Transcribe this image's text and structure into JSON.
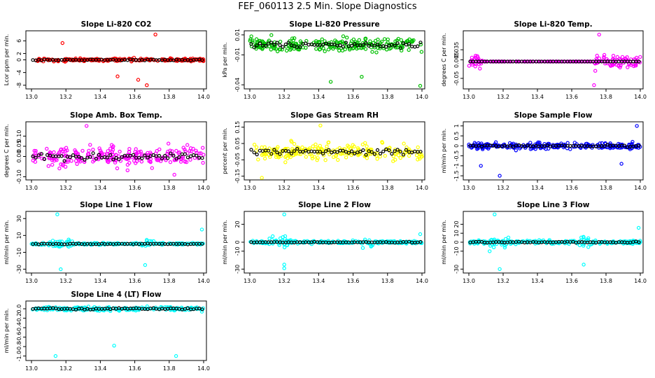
{
  "figure_title": "FEF_060113  2.5 Min. Slope Diagnostics",
  "chart_data": [
    {
      "type": "scatter",
      "title": "Slope Li-820 CO2",
      "ylabel": "Lcor ppm per min.",
      "color": "#ff0000",
      "xlim": [
        13.0,
        14.0
      ],
      "ylim": [
        -8.5,
        8.5
      ],
      "xticks": [
        13.0,
        13.2,
        13.4,
        13.6,
        13.8,
        14.0
      ],
      "xtick_labels": [
        "13.0",
        "13.2",
        "13.4",
        "13.6",
        "13.8",
        "14.0"
      ],
      "yticks": [
        -8,
        -4,
        0,
        2,
        6
      ],
      "ytick_labels": [
        "-8",
        "-4",
        "0",
        "2",
        "6"
      ],
      "seed": 11,
      "spread": 0.45,
      "outliers": [
        [
          13.18,
          5.3
        ],
        [
          13.62,
          -6.3
        ],
        [
          13.67,
          -8.0
        ],
        [
          13.72,
          8.0
        ],
        [
          13.5,
          -5.2
        ]
      ]
    },
    {
      "type": "scatter",
      "title": "Slope Li-820 Pressure",
      "ylabel": "kPa per min.",
      "color": "#00c000",
      "xlim": [
        13.0,
        14.0
      ],
      "ylim": [
        -0.042,
        0.012
      ],
      "xticks": [
        13.0,
        13.2,
        13.4,
        13.6,
        13.8,
        14.0
      ],
      "xtick_labels": [
        "13.0",
        "13.2",
        "13.4",
        "13.6",
        "13.8",
        "14.0"
      ],
      "yticks": [
        -0.04,
        -0.01,
        0.01
      ],
      "ytick_labels": [
        "-0.04",
        "-0.01",
        "0.01"
      ],
      "seed": 23,
      "spread": 0.007,
      "outliers": [
        [
          13.99,
          -0.041
        ],
        [
          13.47,
          -0.037
        ],
        [
          13.65,
          -0.032
        ]
      ]
    },
    {
      "type": "scatter",
      "title": "Slope Li-820 Temp.",
      "ylabel": "degrees C per min.",
      "color": "#ff00ff",
      "xlim": [
        13.0,
        14.0
      ],
      "ylim": [
        -0.075,
        0.085
      ],
      "xticks": [
        13.0,
        13.2,
        13.4,
        13.6,
        13.8,
        14.0
      ],
      "xtick_labels": [
        "13.0",
        "13.2",
        "13.4",
        "13.6",
        "13.8",
        "14.0"
      ],
      "yticks": [
        -0.05,
        0.005,
        0.035
      ],
      "ytick_labels": [
        "-0.05",
        "0.005",
        "0.035"
      ],
      "seed": 37,
      "spread": 0.02,
      "mode": "temp",
      "outliers": [
        [
          13.73,
          -0.07
        ],
        [
          13.76,
          0.08
        ]
      ]
    },
    {
      "type": "scatter",
      "title": "Slope Amb. Box Temp.",
      "ylabel": "degrees C per min.",
      "color": "#ff00ff",
      "xlim": [
        13.0,
        14.0
      ],
      "ylim": [
        -0.105,
        0.16
      ],
      "xticks": [
        13.0,
        13.2,
        13.4,
        13.6,
        13.8,
        14.0
      ],
      "xtick_labels": [
        "13.0",
        "13.2",
        "13.4",
        "13.6",
        "13.8",
        "14.0"
      ],
      "yticks": [
        -0.1,
        0.0,
        0.05,
        0.1
      ],
      "ytick_labels": [
        "-0.10",
        "0.00",
        "0.05",
        "0.10"
      ],
      "seed": 41,
      "spread": 0.045,
      "outliers": [
        [
          13.32,
          0.15
        ],
        [
          13.83,
          -0.09
        ]
      ]
    },
    {
      "type": "scatter",
      "title": "Slope Gas Stream RH",
      "ylabel": "percent per min.",
      "color": "#ffff00",
      "xlim": [
        13.0,
        14.0
      ],
      "ylim": [
        -0.16,
        0.17
      ],
      "xticks": [
        13.0,
        13.2,
        13.4,
        13.6,
        13.8,
        14.0
      ],
      "xtick_labels": [
        "13.0",
        "13.2",
        "13.4",
        "13.6",
        "13.8",
        "14.0"
      ],
      "yticks": [
        -0.15,
        -0.05,
        0.05,
        0.15
      ],
      "ytick_labels": [
        "-0.15",
        "-0.05",
        "0.05",
        "0.15"
      ],
      "seed": 53,
      "spread": 0.05,
      "outliers": [
        [
          13.07,
          -0.16
        ],
        [
          13.41,
          0.16
        ]
      ]
    },
    {
      "type": "scatter",
      "title": "Slope Sample Flow",
      "ylabel": "ml/min per min.",
      "color": "#0000ff",
      "xlim": [
        13.0,
        14.0
      ],
      "ylim": [
        -1.6,
        1.1
      ],
      "xticks": [
        13.0,
        13.2,
        13.4,
        13.6,
        13.8,
        14.0
      ],
      "xtick_labels": [
        "13.0",
        "13.2",
        "13.4",
        "13.6",
        "13.8",
        "14.0"
      ],
      "yticks": [
        -1.5,
        -1.0,
        -0.5,
        0.0,
        0.5,
        1.0
      ],
      "ytick_labels": [
        "-1.5",
        "-1",
        "-0.5",
        "0",
        "0.5",
        "1"
      ],
      "seed": 67,
      "spread": 0.15,
      "outliers": [
        [
          13.18,
          -1.5
        ],
        [
          13.98,
          1.0
        ],
        [
          13.07,
          -1.0
        ],
        [
          13.89,
          -0.9
        ]
      ]
    },
    {
      "type": "scatter",
      "title": "Slope Line 1 Flow",
      "ylabel": "ml/min per min.",
      "color": "#00ffff",
      "xlim": [
        13.0,
        14.0
      ],
      "ylim": [
        -32,
        36
      ],
      "xticks": [
        13.0,
        13.2,
        13.4,
        13.6,
        13.8,
        14.0
      ],
      "xtick_labels": [
        "13.0",
        "13.2",
        "13.4",
        "13.6",
        "13.8",
        "14.0"
      ],
      "yticks": [
        -30,
        -10,
        10,
        30
      ],
      "ytick_labels": [
        "-30",
        "-10",
        "10",
        "30"
      ],
      "seed": 71,
      "spread": 1.2,
      "mode": "flow",
      "outliers": [
        [
          13.15,
          35
        ],
        [
          13.17,
          -30
        ],
        [
          13.66,
          -25
        ],
        [
          13.99,
          17
        ]
      ]
    },
    {
      "type": "scatter",
      "title": "Slope Line 2 Flow",
      "ylabel": "ml/min per min.",
      "color": "#00ffff",
      "xlim": [
        13.0,
        14.0
      ],
      "ylim": [
        -32,
        32
      ],
      "xticks": [
        13.0,
        13.2,
        13.4,
        13.6,
        13.8,
        14.0
      ],
      "xtick_labels": [
        "13.0",
        "13.2",
        "13.4",
        "13.6",
        "13.8",
        "14.0"
      ],
      "yticks": [
        -30,
        -10,
        0,
        20
      ],
      "ytick_labels": [
        "-30",
        "-10",
        "0",
        "20"
      ],
      "seed": 83,
      "spread": 1.5,
      "mode": "flow",
      "outliers": [
        [
          13.2,
          31
        ],
        [
          13.2,
          -25
        ],
        [
          13.2,
          -29
        ],
        [
          13.99,
          9
        ]
      ]
    },
    {
      "type": "scatter",
      "title": "Slope Line 3 Flow",
      "ylabel": "ml/min per min.",
      "color": "#00ffff",
      "xlim": [
        13.0,
        14.0
      ],
      "ylim": [
        -32,
        32
      ],
      "xticks": [
        13.0,
        13.2,
        13.4,
        13.6,
        13.8,
        14.0
      ],
      "xtick_labels": [
        "13.0",
        "13.2",
        "13.4",
        "13.6",
        "13.8",
        "14.0"
      ],
      "yticks": [
        -30,
        -10,
        0,
        10,
        20
      ],
      "ytick_labels": [
        "-30",
        "-10",
        "0",
        "10",
        "20"
      ],
      "seed": 97,
      "spread": 1.8,
      "mode": "flow",
      "outliers": [
        [
          13.15,
          31
        ],
        [
          13.18,
          -30
        ],
        [
          13.67,
          -25
        ],
        [
          13.99,
          16
        ]
      ]
    },
    {
      "type": "scatter",
      "title": "Slope Line 4 (LT) Flow",
      "ylabel": "ml/min per min.",
      "color": "#00ffff",
      "xlim": [
        13.0,
        14.0
      ],
      "ylim": [
        -1.05,
        0.12
      ],
      "xticks": [
        13.0,
        13.2,
        13.4,
        13.6,
        13.8,
        14.0
      ],
      "xtick_labels": [
        "13.0",
        "13.2",
        "13.4",
        "13.6",
        "13.8",
        "14.0"
      ],
      "yticks": [
        -1.0,
        -0.8,
        -0.6,
        -0.4,
        -0.2,
        0.0
      ],
      "ytick_labels": [
        "-1.0",
        "-0.8",
        "-0.6",
        "-0.4",
        "-0.2",
        "0.0"
      ],
      "seed": 101,
      "spread": 0.04,
      "outliers": [
        [
          13.14,
          -1.0
        ],
        [
          13.48,
          -0.78
        ],
        [
          13.84,
          -1.0
        ],
        [
          13.99,
          -0.06
        ]
      ]
    }
  ]
}
